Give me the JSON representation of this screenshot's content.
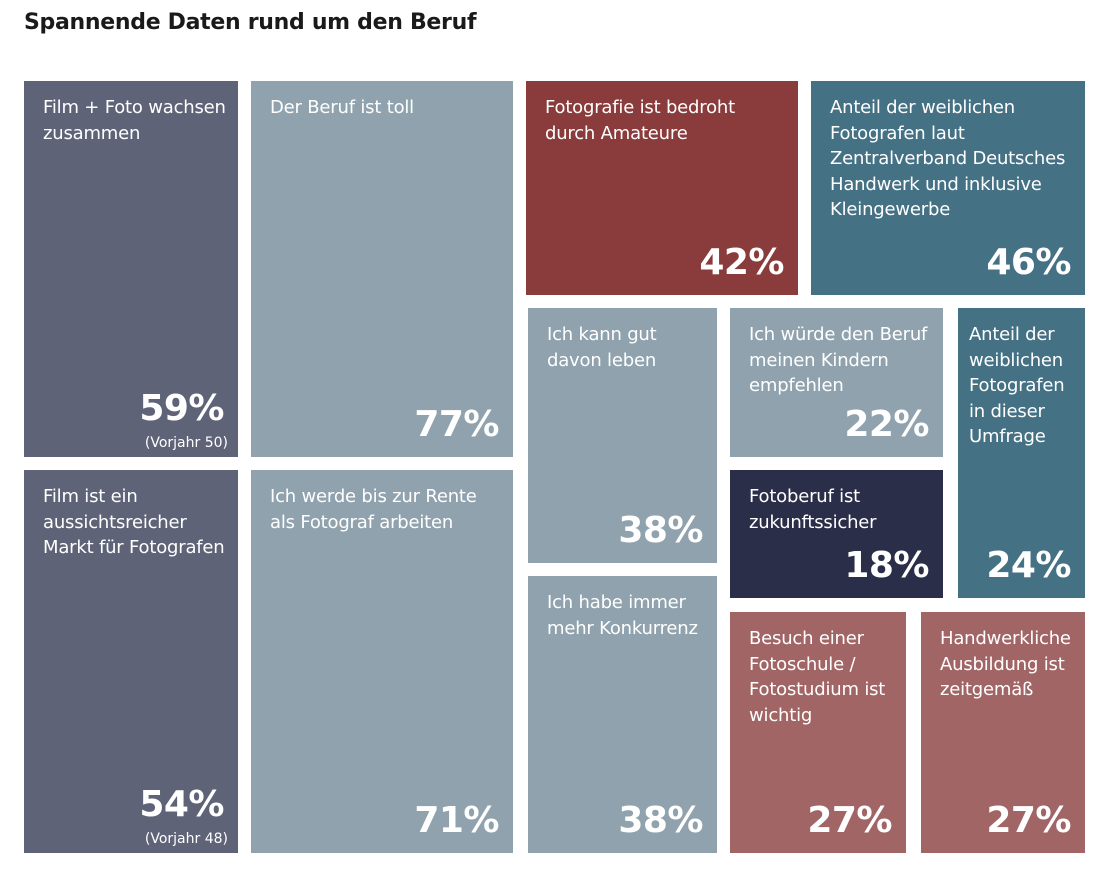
{
  "title": "Spannende Daten rund um den Beruf",
  "colors": {
    "slate": "#5f6377",
    "light": "#8fa2ae",
    "red": "#8a3c3c",
    "teal": "#457184",
    "navy": "#2b2e48",
    "rose": "#a16566"
  },
  "chart_data": {
    "type": "treemap",
    "title": "Spannende Daten rund um den Beruf",
    "unit": "%",
    "items": [
      {
        "label": "Film + Foto wachsen zusammen",
        "value": 59,
        "display": "59%",
        "note": "(Vorjahr 50)",
        "color": "#5f6377"
      },
      {
        "label": "Film ist ein aussichtsreicher Markt für Fotografen",
        "value": 54,
        "display": "54%",
        "note": "(Vorjahr 48)",
        "color": "#5f6377"
      },
      {
        "label": "Der Beruf ist toll",
        "value": 77,
        "display": "77%",
        "color": "#8fa2ae"
      },
      {
        "label": "Ich werde bis zur Rente als Fotograf arbeiten",
        "value": 71,
        "display": "71%",
        "color": "#8fa2ae"
      },
      {
        "label": "Fotografie ist bedroht durch Amateure",
        "value": 42,
        "display": "42%",
        "color": "#8a3c3c"
      },
      {
        "label": "Anteil der weiblichen Fotografen laut Zentralverband Deutsches Handwerk und inklusive Kleingewerbe",
        "value": 46,
        "display": "46%",
        "color": "#457184"
      },
      {
        "label": "Ich kann gut davon leben",
        "value": 38,
        "display": "38%",
        "color": "#8fa2ae"
      },
      {
        "label": "Ich habe immer mehr Konkurrenz",
        "value": 38,
        "display": "38%",
        "color": "#8fa2ae"
      },
      {
        "label": "Ich würde den Beruf meinen Kindern empfehlen",
        "value": 22,
        "display": "22%",
        "color": "#8fa2ae"
      },
      {
        "label": "Fotoberuf ist zukunftssicher",
        "value": 18,
        "display": "18%",
        "color": "#2b2e48"
      },
      {
        "label": "Anteil der weiblichen Fotografen in dieser Umfrage",
        "value": 24,
        "display": "24%",
        "color": "#457184"
      },
      {
        "label": "Besuch einer Fotoschule / Fotostudium ist wichtig",
        "value": 27,
        "display": "27%",
        "color": "#a16566"
      },
      {
        "label": "Handwerkliche Ausbildung ist zeitgemäß",
        "value": 27,
        "display": "27%",
        "color": "#a16566"
      }
    ]
  }
}
